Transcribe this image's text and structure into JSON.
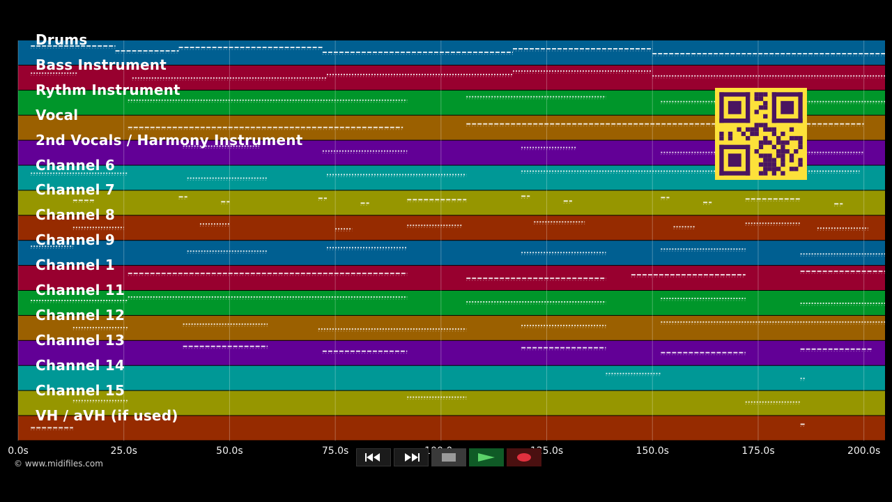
{
  "tracks": [
    {
      "name": "Drums",
      "color": "#005f91"
    },
    {
      "name": "Bass Instrument",
      "color": "#98002f"
    },
    {
      "name": "Rythm Instrument",
      "color": "#00962a"
    },
    {
      "name": "Vocal",
      "color": "#9b6000"
    },
    {
      "name": "2nd Vocals / Harmony Instrument",
      "color": "#620096"
    },
    {
      "name": "Channel 6",
      "color": "#009896"
    },
    {
      "name": "Channel 7",
      "color": "#969600"
    },
    {
      "name": "Channel 8",
      "color": "#962b00"
    },
    {
      "name": "Channel 9",
      "color": "#005f91"
    },
    {
      "name": "Channel 1",
      "color": "#98002f"
    },
    {
      "name": "Channel 11",
      "color": "#00962a"
    },
    {
      "name": "Channel 12",
      "color": "#9b6000"
    },
    {
      "name": "Channel 13",
      "color": "#620096"
    },
    {
      "name": "Channel 14",
      "color": "#009896"
    },
    {
      "name": "Channel 15",
      "color": "#969600"
    },
    {
      "name": "VH / aVH (if used)",
      "color": "#962b00"
    }
  ],
  "timeline": {
    "start_s": 0,
    "end_s": 205,
    "ticks": [
      {
        "value": 0,
        "label": "0.0s"
      },
      {
        "value": 25,
        "label": "25.0s"
      },
      {
        "value": 50,
        "label": "50.0s"
      },
      {
        "value": 75,
        "label": "75.0s"
      },
      {
        "value": 100,
        "label": "100.0s"
      },
      {
        "value": 125,
        "label": "125.0s"
      },
      {
        "value": 150,
        "label": "150.0s"
      },
      {
        "value": 175,
        "label": "175.0s"
      },
      {
        "value": 200,
        "label": "200.0s"
      }
    ]
  },
  "transport": {
    "rewind_icon": "rewind-icon",
    "forward_icon": "fast-forward-icon",
    "stop_icon": "stop-icon",
    "play_icon": "play-icon",
    "record_icon": "record-icon"
  },
  "copyright": "© www.midifiles.com",
  "notes": [
    {
      "track": 0,
      "segments": [
        [
          3,
          23
        ],
        [
          23,
          38
        ],
        [
          38,
          72
        ],
        [
          72,
          117
        ],
        [
          117,
          150
        ],
        [
          150,
          205
        ]
      ]
    },
    {
      "track": 1,
      "segments": [
        [
          3,
          14
        ],
        [
          27,
          73
        ],
        [
          73,
          117
        ],
        [
          117,
          150
        ],
        [
          150,
          205
        ]
      ]
    },
    {
      "track": 2,
      "segments": [
        [
          26,
          92
        ],
        [
          106,
          139
        ],
        [
          152,
          205
        ]
      ]
    },
    {
      "track": 3,
      "segments": [
        [
          26,
          91
        ],
        [
          106,
          200
        ]
      ]
    },
    {
      "track": 4,
      "segments": [
        [
          39,
          57
        ],
        [
          72,
          92
        ],
        [
          119,
          132
        ],
        [
          152,
          200
        ]
      ]
    },
    {
      "track": 5,
      "segments": [
        [
          3,
          26
        ],
        [
          40,
          59
        ],
        [
          73,
          106
        ],
        [
          119,
          199
        ]
      ]
    },
    {
      "track": 6,
      "segments": [
        [
          13,
          18
        ],
        [
          38,
          40
        ],
        [
          48,
          50
        ],
        [
          71,
          73
        ],
        [
          81,
          83
        ],
        [
          92,
          106
        ],
        [
          119,
          121
        ],
        [
          129,
          131
        ],
        [
          152,
          154
        ],
        [
          162,
          164
        ],
        [
          172,
          185
        ],
        [
          193,
          195
        ]
      ]
    },
    {
      "track": 7,
      "segments": [
        [
          13,
          25
        ],
        [
          43,
          50
        ],
        [
          75,
          79
        ],
        [
          92,
          105
        ],
        [
          122,
          134
        ],
        [
          155,
          160
        ],
        [
          172,
          185
        ],
        [
          189,
          201
        ]
      ]
    },
    {
      "track": 8,
      "segments": [
        [
          3,
          13
        ],
        [
          40,
          59
        ],
        [
          73,
          92
        ],
        [
          119,
          139
        ],
        [
          152,
          172
        ],
        [
          185,
          205
        ]
      ]
    },
    {
      "track": 9,
      "segments": [
        [
          26,
          92
        ],
        [
          106,
          139
        ],
        [
          145,
          172
        ],
        [
          185,
          205
        ]
      ]
    },
    {
      "track": 10,
      "segments": [
        [
          3,
          26
        ],
        [
          26,
          92
        ],
        [
          106,
          139
        ],
        [
          152,
          172
        ],
        [
          185,
          205
        ]
      ]
    },
    {
      "track": 11,
      "segments": [
        [
          13,
          26
        ],
        [
          39,
          59
        ],
        [
          71,
          106
        ],
        [
          119,
          139
        ],
        [
          152,
          205
        ]
      ]
    },
    {
      "track": 12,
      "segments": [
        [
          39,
          59
        ],
        [
          72,
          92
        ],
        [
          119,
          139
        ],
        [
          152,
          172
        ],
        [
          185,
          202
        ]
      ]
    },
    {
      "track": 13,
      "segments": [
        [
          139,
          152
        ],
        [
          185,
          186
        ]
      ]
    },
    {
      "track": 14,
      "segments": [
        [
          13,
          26
        ],
        [
          92,
          106
        ],
        [
          172,
          185
        ]
      ]
    },
    {
      "track": 15,
      "segments": [
        [
          3,
          13
        ],
        [
          185,
          186
        ]
      ]
    }
  ]
}
